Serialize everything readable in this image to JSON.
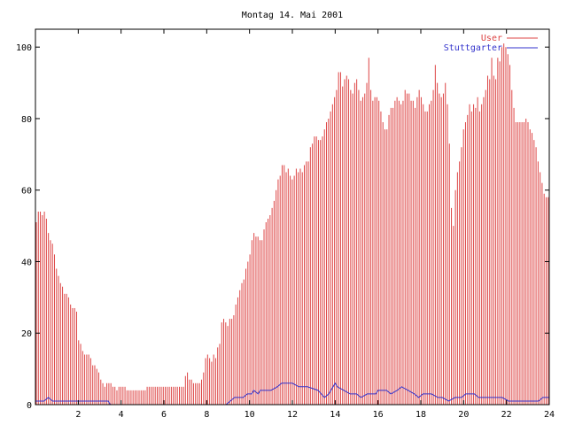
{
  "chart_data": {
    "type": "bar",
    "title": "Montag 14. Mai 2001",
    "xlabel": "",
    "ylabel": "",
    "xlim": [
      0,
      24
    ],
    "ylim": [
      0,
      105
    ],
    "x_ticks": [
      2,
      4,
      6,
      8,
      10,
      12,
      14,
      16,
      18,
      20,
      22,
      24
    ],
    "y_ticks": [
      0,
      20,
      40,
      60,
      80,
      100
    ],
    "grid": false,
    "legend_position": "top-right",
    "x_step_hours": 0.0833,
    "series": [
      {
        "name": "User",
        "style": "impulses",
        "color": "#dd4444",
        "values": [
          51,
          54,
          54,
          53,
          54,
          52,
          48,
          46,
          45,
          42,
          38,
          36,
          34,
          33,
          31,
          31,
          30,
          28,
          27,
          27,
          26,
          18,
          17,
          15,
          14,
          14,
          14,
          13,
          11,
          11,
          10,
          9,
          7,
          6,
          5,
          6,
          6,
          6,
          5,
          5,
          4,
          5,
          5,
          5,
          5,
          4,
          4,
          4,
          4,
          4,
          4,
          4,
          4,
          4,
          4,
          5,
          5,
          5,
          5,
          5,
          5,
          5,
          5,
          5,
          5,
          5,
          5,
          5,
          5,
          5,
          5,
          5,
          5,
          5,
          8,
          9,
          7,
          7,
          6,
          6,
          6,
          6,
          7,
          9,
          13,
          14,
          13,
          12,
          14,
          13,
          16,
          17,
          23,
          24,
          23,
          22,
          24,
          24,
          25,
          28,
          30,
          32,
          34,
          35,
          38,
          40,
          42,
          46,
          48,
          47,
          47,
          46,
          46,
          49,
          51,
          52,
          53,
          55,
          57,
          60,
          63,
          64,
          67,
          67,
          65,
          66,
          64,
          63,
          64,
          66,
          65,
          66,
          65,
          67,
          68,
          68,
          72,
          73,
          75,
          75,
          74,
          74,
          75,
          77,
          79,
          80,
          82,
          84,
          86,
          88,
          93,
          93,
          89,
          91,
          92,
          91,
          88,
          87,
          90,
          91,
          88,
          85,
          86,
          87,
          90,
          97,
          88,
          85,
          86,
          86,
          85,
          82,
          79,
          77,
          77,
          81,
          83,
          83,
          85,
          86,
          85,
          84,
          85,
          88,
          87,
          87,
          85,
          85,
          83,
          86,
          88,
          86,
          84,
          82,
          82,
          84,
          85,
          88,
          95,
          90,
          87,
          86,
          87,
          90,
          84,
          73,
          55,
          50,
          60,
          65,
          68,
          72,
          77,
          79,
          81,
          84,
          82,
          84,
          83,
          86,
          82,
          84,
          86,
          88,
          92,
          91,
          97,
          92,
          91,
          97,
          96,
          100,
          101,
          100,
          98,
          95,
          88,
          83,
          79,
          79,
          79,
          79,
          79,
          80,
          79,
          77,
          76,
          74,
          72,
          68,
          65,
          62,
          59,
          58,
          58
        ],
        "sparse_gaps": true
      },
      {
        "name": "Stuttgarter",
        "style": "line",
        "color": "#3333cc",
        "points": [
          [
            0.0,
            1
          ],
          [
            0.4,
            1
          ],
          [
            0.6,
            2
          ],
          [
            0.8,
            1
          ],
          [
            3.4,
            1
          ],
          [
            3.5,
            0
          ],
          [
            8.9,
            0
          ],
          [
            9.1,
            1
          ],
          [
            9.3,
            2
          ],
          [
            9.7,
            2
          ],
          [
            9.9,
            3
          ],
          [
            10.1,
            3
          ],
          [
            10.2,
            4
          ],
          [
            10.4,
            3
          ],
          [
            10.5,
            4
          ],
          [
            11.0,
            4
          ],
          [
            11.3,
            5
          ],
          [
            11.5,
            6
          ],
          [
            12.0,
            6
          ],
          [
            12.3,
            5
          ],
          [
            12.7,
            5
          ],
          [
            13.2,
            4
          ],
          [
            13.5,
            2
          ],
          [
            13.7,
            3
          ],
          [
            13.9,
            5
          ],
          [
            14.0,
            6
          ],
          [
            14.1,
            5
          ],
          [
            14.4,
            4
          ],
          [
            14.7,
            3
          ],
          [
            15.0,
            3
          ],
          [
            15.2,
            2
          ],
          [
            15.5,
            3
          ],
          [
            15.9,
            3
          ],
          [
            16.0,
            4
          ],
          [
            16.4,
            4
          ],
          [
            16.6,
            3
          ],
          [
            16.9,
            4
          ],
          [
            17.1,
            5
          ],
          [
            17.4,
            4
          ],
          [
            17.7,
            3
          ],
          [
            17.9,
            2
          ],
          [
            18.1,
            3
          ],
          [
            18.5,
            3
          ],
          [
            18.8,
            2
          ],
          [
            19.0,
            2
          ],
          [
            19.3,
            1
          ],
          [
            19.6,
            2
          ],
          [
            19.9,
            2
          ],
          [
            20.1,
            3
          ],
          [
            20.5,
            3
          ],
          [
            20.7,
            2
          ],
          [
            21.5,
            2
          ],
          [
            21.8,
            2
          ],
          [
            22.1,
            1
          ],
          [
            23.5,
            1
          ],
          [
            23.7,
            2
          ],
          [
            24.0,
            2
          ]
        ]
      }
    ]
  }
}
